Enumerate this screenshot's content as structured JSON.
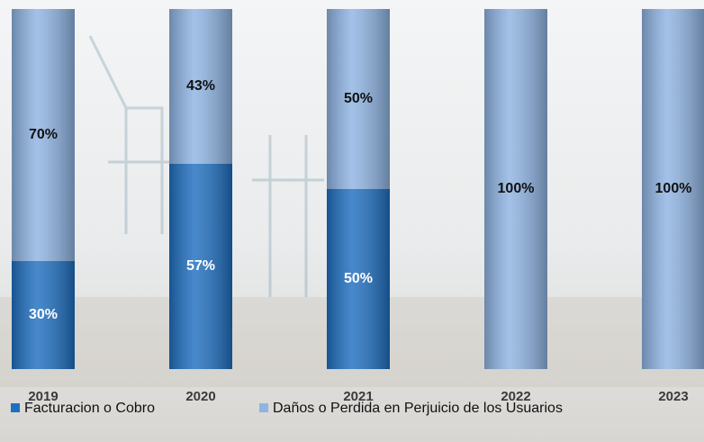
{
  "chart_data": {
    "type": "stacked_bar",
    "categories": [
      "2019",
      "2020",
      "2021",
      "2022",
      "2023"
    ],
    "series": [
      {
        "name": "Facturacion o Cobro",
        "color": "#1f6fc0",
        "values": [
          30,
          57,
          50,
          0,
          0
        ],
        "value_labels": [
          "30%",
          "57%",
          "50%",
          null,
          null
        ]
      },
      {
        "name": "Daños o Perdida en Perjuicio de los Usuarios",
        "color": "#8fb4e3",
        "values": [
          70,
          43,
          50,
          100,
          100
        ],
        "value_labels": [
          "70%",
          "43%",
          "50%",
          "100%",
          "100%"
        ]
      }
    ],
    "ylim": [
      0,
      100
    ],
    "legend": "bottom"
  }
}
